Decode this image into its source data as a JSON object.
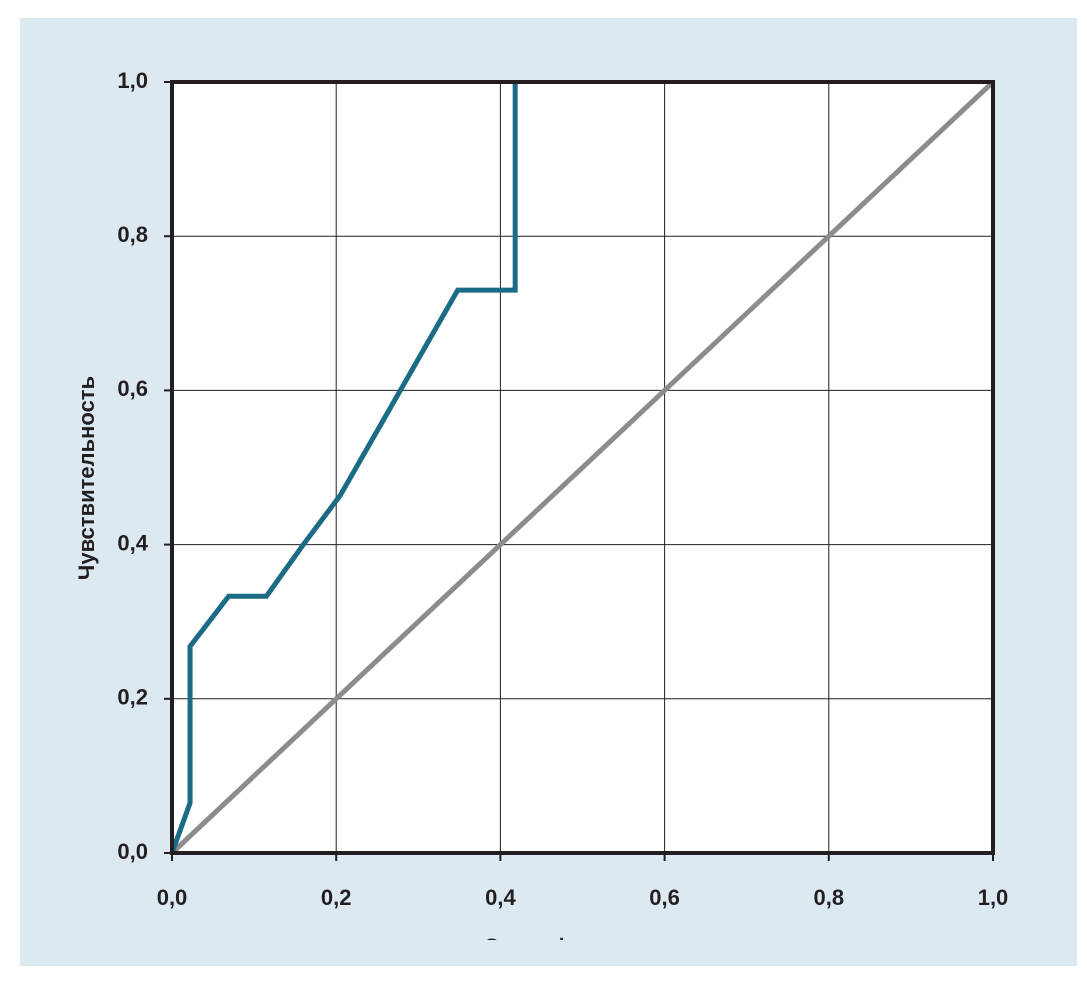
{
  "chart_data": {
    "type": "line",
    "xlabel": "Специфичность",
    "ylabel": "Чувствительность",
    "xlim": [
      0,
      1
    ],
    "ylim": [
      0,
      1
    ],
    "xticks": [
      {
        "value": 0,
        "label": "0,0"
      },
      {
        "value": 0.2,
        "label": "0,2"
      },
      {
        "value": 0.4,
        "label": "0,4"
      },
      {
        "value": 0.6,
        "label": "0,6"
      },
      {
        "value": 0.8,
        "label": "0,8"
      },
      {
        "value": 1,
        "label": "1,0"
      }
    ],
    "yticks": [
      {
        "value": 0,
        "label": "0,0"
      },
      {
        "value": 0.2,
        "label": "0,2"
      },
      {
        "value": 0.4,
        "label": "0,4"
      },
      {
        "value": 0.6,
        "label": "0,6"
      },
      {
        "value": 0.8,
        "label": "0,8"
      },
      {
        "value": 1,
        "label": "1,0"
      }
    ],
    "grid": true,
    "series": [
      {
        "color": "#1b6b86",
        "x": [
          0,
          0.022,
          0.022,
          0.069,
          0.115,
          0.16,
          0.205,
          0.348,
          0.418,
          0.418,
          0.418
        ],
        "values": [
          0,
          0.065,
          0.268,
          0.333,
          0.333,
          0.4,
          0.464,
          0.73,
          0.73,
          0.73,
          1.0
        ]
      },
      {
        "color": "#8c8c8c",
        "x": [
          0,
          1
        ],
        "values": [
          0,
          1
        ]
      }
    ]
  }
}
